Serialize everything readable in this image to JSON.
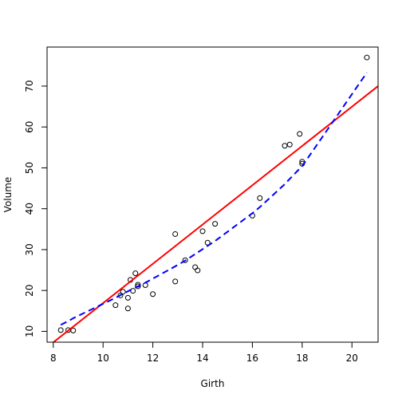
{
  "chart_data": {
    "type": "scatter",
    "xlabel": "Girth",
    "ylabel": "Volume",
    "xlim": [
      7.75,
      21.05
    ],
    "ylim": [
      7.35,
      79.55
    ],
    "x_ticks": [
      8,
      10,
      12,
      14,
      16,
      18,
      20
    ],
    "y_ticks": [
      10,
      20,
      30,
      40,
      50,
      60,
      70
    ],
    "grid": false,
    "legend": "none",
    "points": {
      "x": [
        8.3,
        8.6,
        8.8,
        10.5,
        10.7,
        10.8,
        11.0,
        11.0,
        11.1,
        11.2,
        11.3,
        11.4,
        11.4,
        11.7,
        12.0,
        12.9,
        12.9,
        13.3,
        13.7,
        13.8,
        14.0,
        14.2,
        14.5,
        16.0,
        16.3,
        17.3,
        17.5,
        17.9,
        18.0,
        18.0,
        20.6
      ],
      "y": [
        10.3,
        10.3,
        10.2,
        16.4,
        18.8,
        19.7,
        15.6,
        18.2,
        22.6,
        19.9,
        24.2,
        21.0,
        21.4,
        21.3,
        19.1,
        22.2,
        33.8,
        27.4,
        25.7,
        24.9,
        34.5,
        31.7,
        36.3,
        38.3,
        42.6,
        55.4,
        55.7,
        58.3,
        51.5,
        51.0,
        77.0
      ]
    },
    "linear_fit": {
      "color": "#ff0000",
      "style": "solid",
      "x": [
        7.75,
        21.05
      ],
      "y": [
        6.1,
        70.0
      ]
    },
    "smooth_fit": {
      "color": "#0000ff",
      "style": "dashed",
      "x": [
        8.3,
        8.6,
        8.8,
        10.5,
        10.8,
        11.0,
        11.3,
        11.7,
        12.0,
        12.9,
        13.3,
        13.8,
        14.2,
        14.5,
        16.0,
        16.3,
        17.3,
        17.5,
        17.9,
        18.0,
        20.6
      ],
      "y": [
        11.6,
        12.5,
        13.2,
        18.2,
        19.2,
        19.8,
        20.7,
        21.9,
        22.9,
        25.9,
        27.3,
        29.3,
        30.9,
        32.1,
        38.9,
        40.4,
        46.0,
        47.3,
        49.8,
        50.4,
        73.3
      ]
    }
  }
}
